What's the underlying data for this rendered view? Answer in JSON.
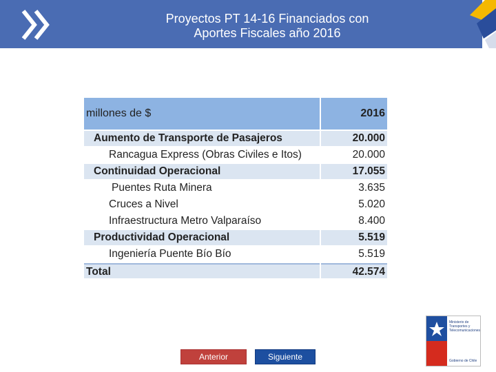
{
  "header": {
    "title_lines": [
      "Proyectos PT 14-16 Financiados con",
      "Aportes Fiscales año 2016"
    ]
  },
  "table": {
    "header": [
      "millones de $",
      "2016"
    ],
    "rows": [
      [
        "Aumento de Transporte de Pasajeros",
        "20.000"
      ],
      [
        "Rancagua Express (Obras Civiles e Itos)",
        "20.000"
      ],
      [
        "Continuidad Operacional",
        "17.055"
      ],
      [
        "Puentes Ruta Minera",
        "3.635"
      ],
      [
        "Cruces a Nivel",
        "5.020"
      ],
      [
        "Infraestructura Metro Valparaíso",
        "8.400"
      ],
      [
        "Productividad Operacional",
        "5.519"
      ],
      [
        "Ingeniería Puente Bío Bío",
        "5.519"
      ],
      [
        "Total",
        "42.574"
      ]
    ]
  },
  "navigation": {
    "previous": "Anterior",
    "next": "Siguiente"
  },
  "logo": {
    "lines": [
      "Ministerio de",
      "Transportes y",
      "Telecomunicaciones"
    ],
    "footer": "Gobierno de Chile"
  }
}
